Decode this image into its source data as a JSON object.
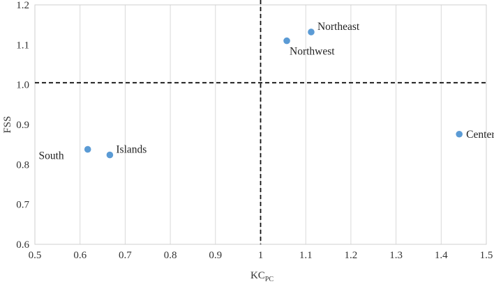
{
  "chart_data": {
    "type": "scatter",
    "xlabel": "KC",
    "xlabel_sub": "PC",
    "ylabel": "FSS",
    "xlim": [
      0.5,
      1.5
    ],
    "ylim": [
      0.6,
      1.2
    ],
    "xticks": [
      "0.5",
      "0.6",
      "0.7",
      "0.8",
      "0.9",
      "1",
      "1.1",
      "1.2",
      "1.3",
      "1.4",
      "1.5"
    ],
    "yticks": [
      "0.6",
      "0.7",
      "0.8",
      "0.9",
      "1.0",
      "1.1",
      "1.2"
    ],
    "grid": "vertical",
    "reference_lines": {
      "x": 1.0,
      "y": 1.005
    },
    "marker_color": "#5B9BD5",
    "points": [
      {
        "label": "Northeast",
        "x": 1.112,
        "y": 1.132,
        "label_pos": "upper-right"
      },
      {
        "label": "Northwest",
        "x": 1.058,
        "y": 1.11,
        "label_pos": "below"
      },
      {
        "label": "Center",
        "x": 1.44,
        "y": 0.876,
        "label_pos": "right"
      },
      {
        "label": "Islands",
        "x": 0.666,
        "y": 0.824,
        "label_pos": "upper-right"
      },
      {
        "label": "South",
        "x": 0.617,
        "y": 0.838,
        "label_pos": "lower-left"
      }
    ]
  }
}
